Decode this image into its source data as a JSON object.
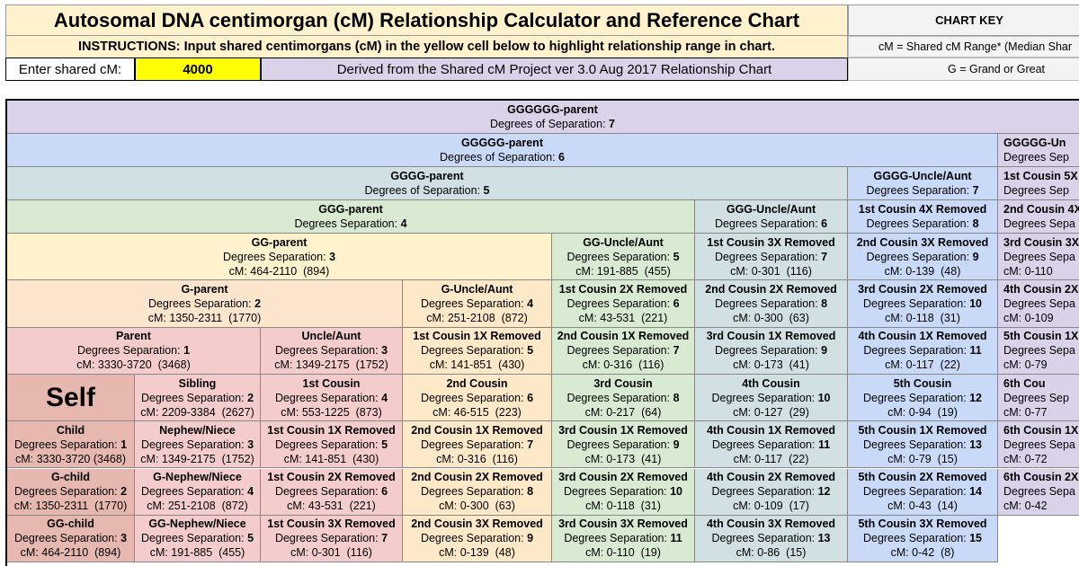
{
  "header": {
    "title": "Autosomal DNA centimorgan (cM) Relationship Calculator and Reference Chart",
    "instructions": "INSTRUCTIONS: Input shared centimorgans (cM) in the yellow cell below to highlight relationship range in chart.",
    "input_label": "Enter shared cM:",
    "input_value": "4000",
    "source": "Derived from the Shared cM Project ver 3.0 Aug 2017 Relationship Chart"
  },
  "chart_key": {
    "title": "CHART KEY",
    "lines": [
      "cM = Shared cM Range*  (Median Shar",
      "G = Grand or Great"
    ]
  },
  "table": {
    "rows": [
      [
        {
          "name": "GGGGGG-parent",
          "deg_label": "Degrees of Separation:",
          "deg": 7
        }
      ],
      [
        {
          "name": "GGGGG-parent",
          "deg_label": "Degrees of Separation:",
          "deg": 6
        },
        {
          "name": "GGGGG-Un",
          "deg_label": "Degrees Sep"
        }
      ],
      [
        {
          "name": "GGGG-parent",
          "deg_label": "Degrees of Separation:",
          "deg": 5
        },
        {
          "name": "GGGG-Uncle/Aunt",
          "deg_label": "Degrees Separation:",
          "deg": 7
        },
        {
          "name": "1st Cousin 5X",
          "deg_label": "Degrees Sep"
        }
      ],
      [
        {
          "name": "GGG-parent",
          "deg_label": "Degrees Separation:",
          "deg": 4
        },
        {
          "name": "GGG-Uncle/Aunt",
          "deg_label": "Degrees Separation:",
          "deg": 6
        },
        {
          "name": "1st Cousin 4X Removed",
          "deg_label": "Degrees Separation:",
          "deg": 8
        },
        {
          "name": "2nd Cousin 4X",
          "deg_label": "Degrees Sepa"
        }
      ],
      [
        {
          "name": "GG-parent",
          "deg_label": "Degrees Separation:",
          "deg": 3,
          "cm": "cM: 464-2110  (894)"
        },
        {
          "name": "GG-Uncle/Aunt",
          "deg_label": "Degrees Separation:",
          "deg": 5,
          "cm": "cM: 191-885  (455)"
        },
        {
          "name": "1st Cousin 3X Removed",
          "deg_label": "Degrees Separation:",
          "deg": 7,
          "cm": "cM: 0-301  (116)"
        },
        {
          "name": "2nd Cousin 3X Removed",
          "deg_label": "Degrees Separation:",
          "deg": 9,
          "cm": "cM: 0-139  (48)"
        },
        {
          "name": "3rd Cousin 3X",
          "deg_label": "Degrees Sepa",
          "cm": "cM: 0-110"
        }
      ],
      [
        {
          "name": "G-parent",
          "deg_label": "Degrees Separation:",
          "deg": 2,
          "cm": "cM: 1350-2311  (1770)"
        },
        {
          "name": "G-Uncle/Aunt",
          "deg_label": "Degrees Separation:",
          "deg": 4,
          "cm": "cM: 251-2108  (872)"
        },
        {
          "name": "1st Cousin 2X Removed",
          "deg_label": "Degrees Separation:",
          "deg": 6,
          "cm": "cM: 43-531  (221)"
        },
        {
          "name": "2nd Cousin 2X Removed",
          "deg_label": "Degrees Separation:",
          "deg": 8,
          "cm": "cM: 0-300  (63)"
        },
        {
          "name": "3rd Cousin 2X Removed",
          "deg_label": "Degrees Separation:",
          "deg": 10,
          "cm": "cM: 0-118  (31)"
        },
        {
          "name": "4th Cousin 2X",
          "deg_label": "Degrees Sepa",
          "cm": "cM: 0-109"
        }
      ],
      [
        {
          "name": "Parent",
          "deg_label": "Degrees Separation:",
          "deg": 1,
          "cm": "cM: 3330-3720  (3468)"
        },
        {
          "name": "Uncle/Aunt",
          "deg_label": "Degrees Separation:",
          "deg": 3,
          "cm": "cM: 1349-2175  (1752)"
        },
        {
          "name": "1st Cousin 1X Removed",
          "deg_label": "Degrees Separation:",
          "deg": 5,
          "cm": "cM: 141-851  (430)"
        },
        {
          "name": "2nd Cousin 1X Removed",
          "deg_label": "Degrees Separation:",
          "deg": 7,
          "cm": "cM: 0-316  (116)"
        },
        {
          "name": "3rd Cousin 1X Removed",
          "deg_label": "Degrees Separation:",
          "deg": 9,
          "cm": "cM: 0-173  (41)"
        },
        {
          "name": "4th Cousin 1X Removed",
          "deg_label": "Degrees Separation:",
          "deg": 11,
          "cm": "cM: 0-117  (22)"
        },
        {
          "name": "5th Cousin 1X",
          "deg_label": "Degrees Sepa",
          "cm": "cM: 0-79"
        }
      ],
      [
        {
          "name": "Self"
        },
        {
          "name": "Sibling",
          "deg_label": "Degrees Separation:",
          "deg": 2,
          "cm": "cM: 2209-3384  (2627)"
        },
        {
          "name": "1st Cousin",
          "deg_label": "Degrees Separation:",
          "deg": 4,
          "cm": "cM: 553-1225  (873)"
        },
        {
          "name": "2nd Cousin",
          "deg_label": "Degrees Separation:",
          "deg": 6,
          "cm": "cM: 46-515  (223)"
        },
        {
          "name": "3rd Cousin",
          "deg_label": "Degrees Separation:",
          "deg": 8,
          "cm": "cM: 0-217  (64)"
        },
        {
          "name": "4th Cousin",
          "deg_label": "Degrees Separation:",
          "deg": 10,
          "cm": "cM: 0-127  (29)"
        },
        {
          "name": "5th Cousin",
          "deg_label": "Degrees Separation:",
          "deg": 12,
          "cm": "cM: 0-94  (19)"
        },
        {
          "name": "6th Cou",
          "deg_label": "Degrees Sep",
          "cm": "cM: 0-77"
        }
      ],
      [
        {
          "name": "Child",
          "deg_label": "Degrees Separation:",
          "deg": 1,
          "cm": "cM: 3330-3720 (3468)"
        },
        {
          "name": "Nephew/Niece",
          "deg_label": "Degrees Separation:",
          "deg": 3,
          "cm": "cM: 1349-2175  (1752)"
        },
        {
          "name": "1st Cousin 1X Removed",
          "deg_label": "Degrees Separation:",
          "deg": 5,
          "cm": "cM: 141-851  (430)"
        },
        {
          "name": "2nd Cousin 1X Removed",
          "deg_label": "Degrees Separation:",
          "deg": 7,
          "cm": "cM: 0-316  (116)"
        },
        {
          "name": "3rd Cousin 1X Removed",
          "deg_label": "Degrees Separation:",
          "deg": 9,
          "cm": "cM: 0-173  (41)"
        },
        {
          "name": "4th Cousin 1X Removed",
          "deg_label": "Degrees Separation:",
          "deg": 11,
          "cm": "cM: 0-117  (22)"
        },
        {
          "name": "5th Cousin 1X Removed",
          "deg_label": "Degrees Separation:",
          "deg": 13,
          "cm": "cM: 0-79  (15)"
        },
        {
          "name": "6th Cousin 1X",
          "deg_label": "Degrees Sepa",
          "cm": "cM: 0-72"
        }
      ],
      [
        {
          "name": "G-child",
          "deg_label": "Degrees Separation:",
          "deg": 2,
          "cm": "cM: 1350-2311  (1770)"
        },
        {
          "name": "G-Nephew/Niece",
          "deg_label": "Degrees Separation:",
          "deg": 4,
          "cm": "cM: 251-2108  (872)"
        },
        {
          "name": "1st Cousin 2X Removed",
          "deg_label": "Degrees Separation:",
          "deg": 6,
          "cm": "cM: 43-531  (221)"
        },
        {
          "name": "2nd Cousin 2X Removed",
          "deg_label": "Degrees Separation:",
          "deg": 8,
          "cm": "cM: 0-300  (63)"
        },
        {
          "name": "3rd Cousin 2X Removed",
          "deg_label": "Degrees Separation:",
          "deg": 10,
          "cm": "cM: 0-118  (31)"
        },
        {
          "name": "4th Cousin 2X Removed",
          "deg_label": "Degrees Separation:",
          "deg": 12,
          "cm": "cM: 0-109  (17)"
        },
        {
          "name": "5th Cousin 2X Removed",
          "deg_label": "Degrees Separation:",
          "deg": 14,
          "cm": "cM: 0-43  (14)"
        },
        {
          "name": "6th Cousin 2X",
          "deg_label": "Degrees Sepa",
          "cm": "cM: 0-42"
        }
      ],
      [
        {
          "name": "GG-child",
          "deg_label": "Degrees Separation:",
          "deg": 3,
          "cm": "cM: 464-2110  (894)"
        },
        {
          "name": "GG-Nephew/Niece",
          "deg_label": "Degrees Separation:",
          "deg": 5,
          "cm": "cM: 191-885  (455)"
        },
        {
          "name": "1st Cousin 3X Removed",
          "deg_label": "Degrees Separation:",
          "deg": 7,
          "cm": "cM: 0-301  (116)"
        },
        {
          "name": "2nd Cousin 3X Removed",
          "deg_label": "Degrees Separation:",
          "deg": 9,
          "cm": "cM: 0-139  (48)"
        },
        {
          "name": "3rd Cousin 3X Removed",
          "deg_label": "Degrees Separation:",
          "deg": 11,
          "cm": "cM: 0-110  (19)"
        },
        {
          "name": "4th Cousin 3X Removed",
          "deg_label": "Degrees Separation:",
          "deg": 13,
          "cm": "cM: 0-86  (15)"
        },
        {
          "name": "5th Cousin 3X Removed",
          "deg_label": "Degrees Separation:",
          "deg": 15,
          "cm": "cM: 0-42  (8)"
        }
      ]
    ]
  }
}
